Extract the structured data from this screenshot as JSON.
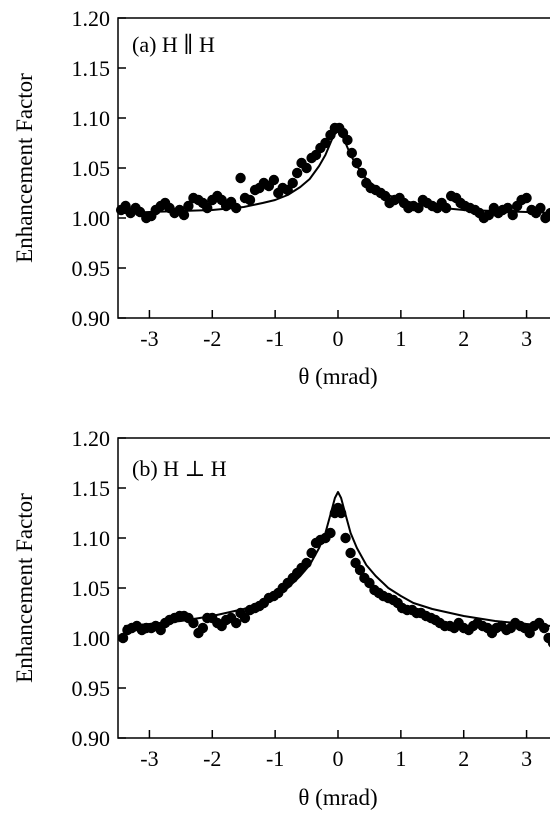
{
  "chart_data": [
    {
      "type": "scatter",
      "panel_label": "(a) H ∥ H",
      "xlabel": "θ  (mrad)",
      "ylabel": "Enhancement Factor",
      "xlim": [
        -3.5,
        3.5
      ],
      "ylim": [
        0.9,
        1.2
      ],
      "x_ticks": [
        -3,
        -2,
        -1,
        0,
        1,
        2,
        3
      ],
      "x_tick_labels": [
        "-3",
        "-2",
        "-1",
        "0",
        "1",
        "2",
        "3"
      ],
      "y_ticks": [
        0.9,
        0.95,
        1.0,
        1.05,
        1.1,
        1.15,
        1.2
      ],
      "y_tick_labels": [
        "0.90",
        "0.95",
        "1.00",
        "1.05",
        "1.10",
        "1.15",
        "1.20"
      ],
      "grid": false,
      "legend": "none",
      "series": [
        {
          "kind": "points",
          "x": [
            -3.45,
            -3.38,
            -3.3,
            -3.22,
            -3.15,
            -3.05,
            -2.97,
            -2.9,
            -2.82,
            -2.75,
            -2.68,
            -2.6,
            -2.52,
            -2.45,
            -2.38,
            -2.3,
            -2.22,
            -2.15,
            -2.08,
            -2.0,
            -1.92,
            -1.85,
            -1.78,
            -1.7,
            -1.62,
            -1.55,
            -1.48,
            -1.4,
            -1.32,
            -1.25,
            -1.18,
            -1.1,
            -1.02,
            -0.95,
            -0.88,
            -0.8,
            -0.72,
            -0.65,
            -0.58,
            -0.5,
            -0.42,
            -0.35,
            -0.28,
            -0.2,
            -0.12,
            -0.05,
            0.02,
            0.08,
            0.15,
            0.22,
            0.3,
            0.38,
            0.45,
            0.52,
            0.6,
            0.68,
            0.75,
            0.82,
            0.9,
            0.98,
            1.05,
            1.12,
            1.2,
            1.28,
            1.35,
            1.42,
            1.5,
            1.58,
            1.65,
            1.72,
            1.8,
            1.88,
            1.95,
            2.02,
            2.1,
            2.18,
            2.25,
            2.32,
            2.4,
            2.48,
            2.55,
            2.62,
            2.7,
            2.78,
            2.85,
            2.92,
            3.0,
            3.08,
            3.15,
            3.22,
            3.3,
            3.38,
            3.45
          ],
          "y": [
            1.008,
            1.012,
            1.005,
            1.01,
            1.006,
            1.0,
            1.002,
            1.008,
            1.012,
            1.015,
            1.01,
            1.005,
            1.008,
            1.003,
            1.012,
            1.02,
            1.018,
            1.015,
            1.01,
            1.018,
            1.022,
            1.018,
            1.012,
            1.016,
            1.01,
            1.04,
            1.02,
            1.018,
            1.028,
            1.03,
            1.035,
            1.032,
            1.038,
            1.025,
            1.03,
            1.028,
            1.035,
            1.045,
            1.055,
            1.05,
            1.06,
            1.063,
            1.07,
            1.075,
            1.083,
            1.09,
            1.09,
            1.085,
            1.078,
            1.065,
            1.055,
            1.045,
            1.035,
            1.03,
            1.028,
            1.025,
            1.022,
            1.015,
            1.018,
            1.02,
            1.015,
            1.01,
            1.012,
            1.01,
            1.018,
            1.015,
            1.012,
            1.01,
            1.015,
            1.01,
            1.022,
            1.02,
            1.015,
            1.012,
            1.01,
            1.008,
            1.005,
            1.0,
            1.003,
            1.01,
            1.005,
            1.008,
            1.01,
            1.003,
            1.012,
            1.018,
            1.02,
            1.008,
            1.005,
            1.01,
            1.0,
            1.005,
            1.0
          ]
        },
        {
          "kind": "line",
          "x": [
            -3.4,
            -3.0,
            -2.5,
            -2.0,
            -1.5,
            -1.2,
            -1.0,
            -0.8,
            -0.6,
            -0.45,
            -0.3,
            -0.2,
            -0.1,
            -0.05,
            0.0,
            0.05,
            0.1,
            0.2,
            0.3,
            0.45,
            0.6,
            0.8,
            1.0,
            1.2,
            1.5,
            2.0,
            2.5,
            3.0,
            3.4
          ],
          "y": [
            1.005,
            1.006,
            1.007,
            1.008,
            1.011,
            1.015,
            1.018,
            1.023,
            1.031,
            1.039,
            1.052,
            1.063,
            1.078,
            1.084,
            1.087,
            1.084,
            1.078,
            1.063,
            1.052,
            1.039,
            1.031,
            1.023,
            1.018,
            1.015,
            1.011,
            1.008,
            1.007,
            1.006,
            1.005
          ]
        }
      ]
    },
    {
      "type": "scatter",
      "panel_label": "(b) H ⊥ H",
      "xlabel": "θ  (mrad)",
      "ylabel": "Enhancement Factor",
      "xlim": [
        -3.5,
        3.5
      ],
      "ylim": [
        0.9,
        1.2
      ],
      "x_ticks": [
        -3,
        -2,
        -1,
        0,
        1,
        2,
        3
      ],
      "x_tick_labels": [
        "-3",
        "-2",
        "-1",
        "0",
        "1",
        "2",
        "3"
      ],
      "y_ticks": [
        0.9,
        0.95,
        1.0,
        1.05,
        1.1,
        1.15,
        1.2
      ],
      "y_tick_labels": [
        "0.90",
        "0.95",
        "1.00",
        "1.05",
        "1.10",
        "1.15",
        "1.20"
      ],
      "grid": false,
      "legend": "none",
      "series": [
        {
          "kind": "points",
          "x": [
            -3.42,
            -3.35,
            -3.28,
            -3.2,
            -3.12,
            -3.05,
            -2.97,
            -2.9,
            -2.82,
            -2.75,
            -2.68,
            -2.6,
            -2.52,
            -2.45,
            -2.38,
            -2.3,
            -2.22,
            -2.15,
            -2.08,
            -2.0,
            -1.92,
            -1.85,
            -1.78,
            -1.7,
            -1.62,
            -1.55,
            -1.48,
            -1.4,
            -1.32,
            -1.25,
            -1.18,
            -1.1,
            -1.02,
            -0.95,
            -0.88,
            -0.8,
            -0.72,
            -0.65,
            -0.58,
            -0.5,
            -0.42,
            -0.35,
            -0.28,
            -0.2,
            -0.12,
            -0.05,
            0.0,
            0.05,
            0.12,
            0.2,
            0.28,
            0.35,
            0.42,
            0.5,
            0.58,
            0.65,
            0.72,
            0.8,
            0.88,
            0.95,
            1.02,
            1.1,
            1.18,
            1.25,
            1.32,
            1.4,
            1.48,
            1.55,
            1.62,
            1.7,
            1.78,
            1.85,
            1.92,
            2.0,
            2.08,
            2.15,
            2.22,
            2.3,
            2.38,
            2.45,
            2.52,
            2.6,
            2.68,
            2.75,
            2.82,
            2.9,
            2.97,
            3.05,
            3.12,
            3.2,
            3.28,
            3.35,
            3.42
          ],
          "y": [
            1.0,
            1.008,
            1.01,
            1.012,
            1.008,
            1.01,
            1.01,
            1.012,
            1.008,
            1.015,
            1.018,
            1.02,
            1.022,
            1.022,
            1.02,
            1.015,
            1.005,
            1.01,
            1.02,
            1.02,
            1.015,
            1.012,
            1.018,
            1.02,
            1.015,
            1.025,
            1.02,
            1.028,
            1.03,
            1.032,
            1.035,
            1.04,
            1.042,
            1.045,
            1.05,
            1.055,
            1.06,
            1.065,
            1.07,
            1.075,
            1.085,
            1.095,
            1.098,
            1.1,
            1.105,
            1.125,
            1.13,
            1.125,
            1.1,
            1.085,
            1.075,
            1.068,
            1.06,
            1.055,
            1.048,
            1.045,
            1.042,
            1.04,
            1.038,
            1.035,
            1.03,
            1.028,
            1.028,
            1.025,
            1.025,
            1.022,
            1.02,
            1.018,
            1.015,
            1.012,
            1.012,
            1.01,
            1.015,
            1.01,
            1.008,
            1.012,
            1.015,
            1.012,
            1.01,
            1.005,
            1.01,
            1.012,
            1.008,
            1.01,
            1.015,
            1.012,
            1.01,
            1.005,
            1.012,
            1.015,
            1.01,
            1.0,
            0.995
          ]
        },
        {
          "kind": "line",
          "x": [
            -3.4,
            -3.0,
            -2.5,
            -2.0,
            -1.5,
            -1.2,
            -1.0,
            -0.8,
            -0.6,
            -0.45,
            -0.3,
            -0.2,
            -0.1,
            -0.05,
            0.0,
            0.05,
            0.1,
            0.2,
            0.3,
            0.45,
            0.6,
            0.8,
            1.0,
            1.2,
            1.5,
            2.0,
            2.5,
            3.0,
            3.4
          ],
          "y": [
            1.012,
            1.014,
            1.017,
            1.022,
            1.029,
            1.035,
            1.042,
            1.05,
            1.062,
            1.073,
            1.09,
            1.105,
            1.128,
            1.14,
            1.146,
            1.14,
            1.128,
            1.105,
            1.09,
            1.073,
            1.062,
            1.05,
            1.042,
            1.035,
            1.029,
            1.022,
            1.017,
            1.014,
            1.012
          ]
        }
      ]
    }
  ]
}
